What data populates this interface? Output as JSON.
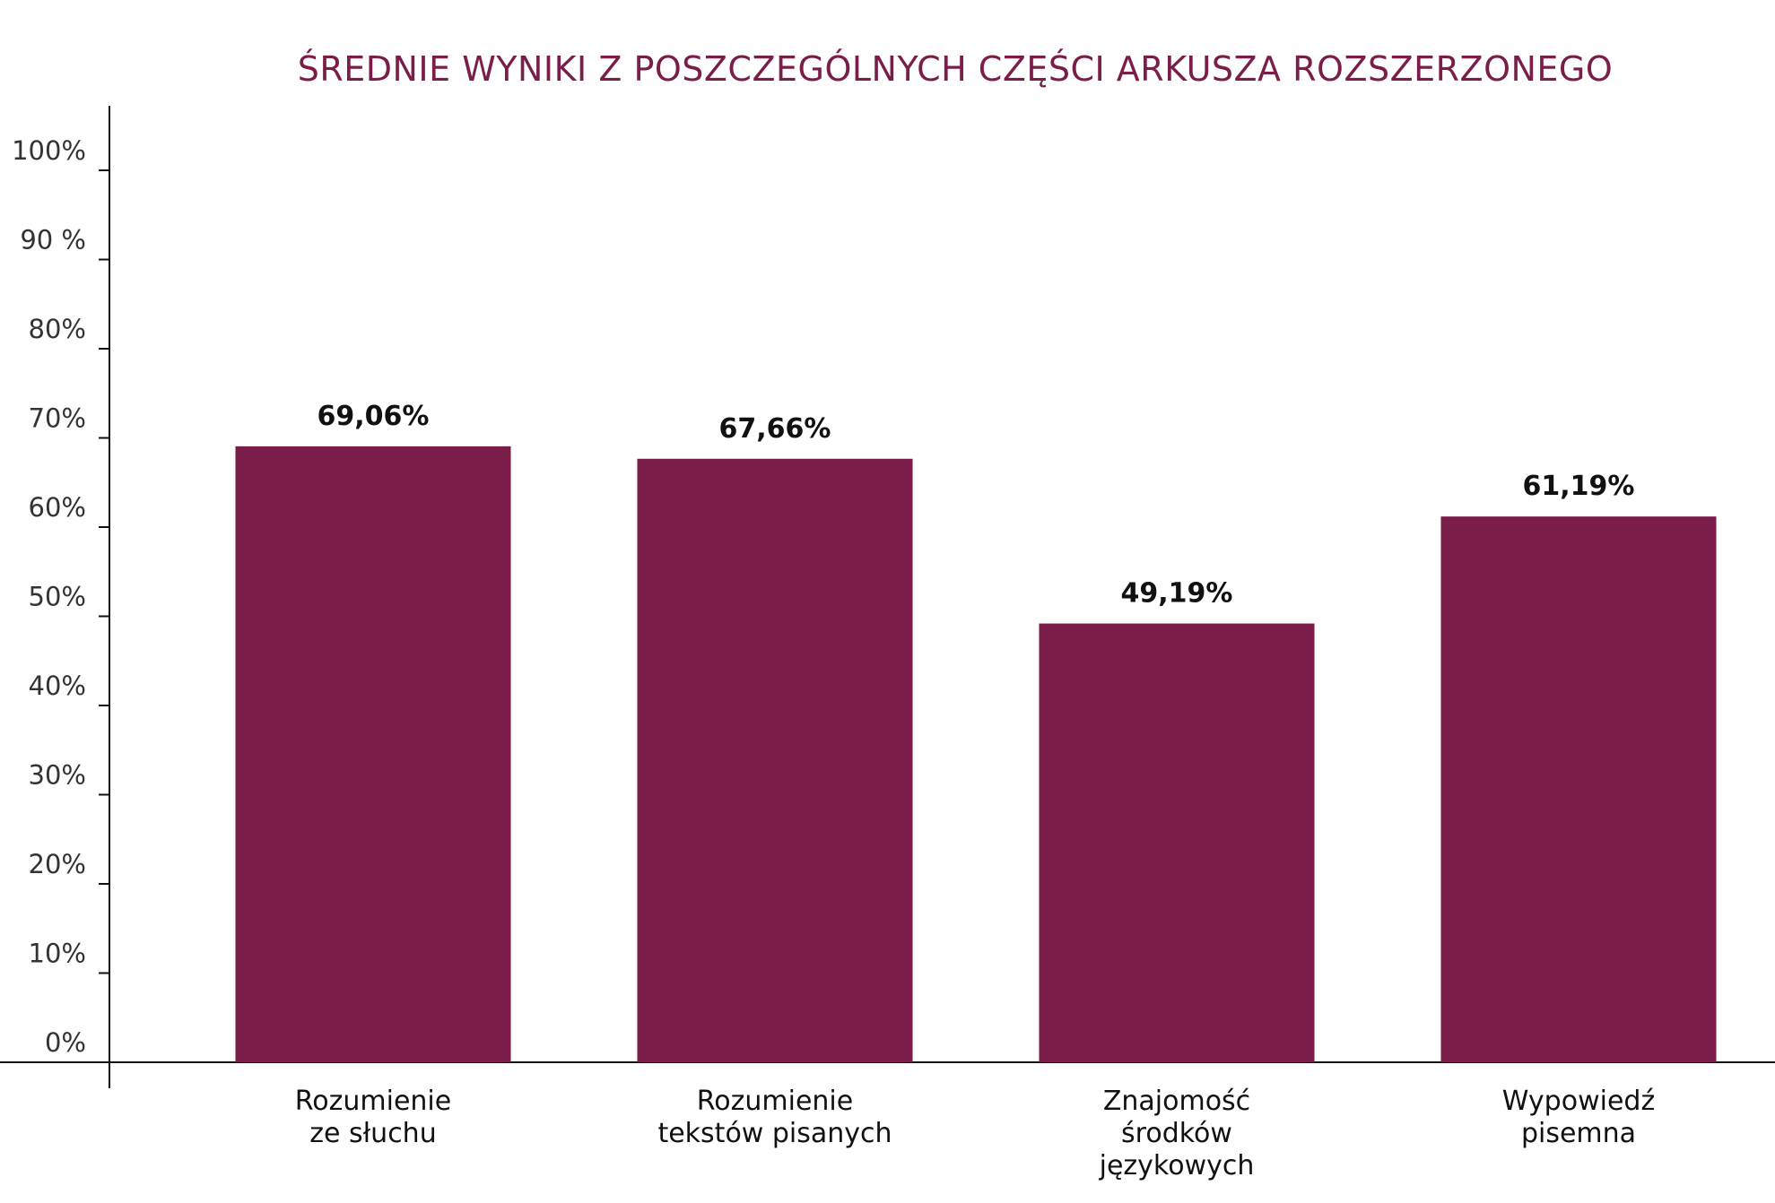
{
  "chart_data": {
    "type": "bar",
    "title": "ŚREDNIE WYNIKI Z POSZCZEGÓLNYCH CZĘŚCI ARKUSZA ROZSZERZONEGO",
    "categories": [
      [
        "Rozumienie",
        "ze słuchu"
      ],
      [
        "Rozumienie",
        "tekstów pisanych"
      ],
      [
        "Znajomość",
        "środków",
        "językowych"
      ],
      [
        "Wypowiedź",
        "pisemna"
      ]
    ],
    "values": [
      69.06,
      67.66,
      49.19,
      61.19
    ],
    "value_labels": [
      "69,06%",
      "67,66%",
      "49,19%",
      "61,19%"
    ],
    "y_tick_labels": [
      "0%",
      "10%",
      "20%",
      "30%",
      "40%",
      "50%",
      "60%",
      "70%",
      "80%",
      "90 %",
      "100%"
    ],
    "ylim": [
      0,
      100
    ],
    "xlabel": "",
    "ylabel": "",
    "grid": false,
    "bar_color": "#7a1e49",
    "title_color": "#7a1e49"
  }
}
